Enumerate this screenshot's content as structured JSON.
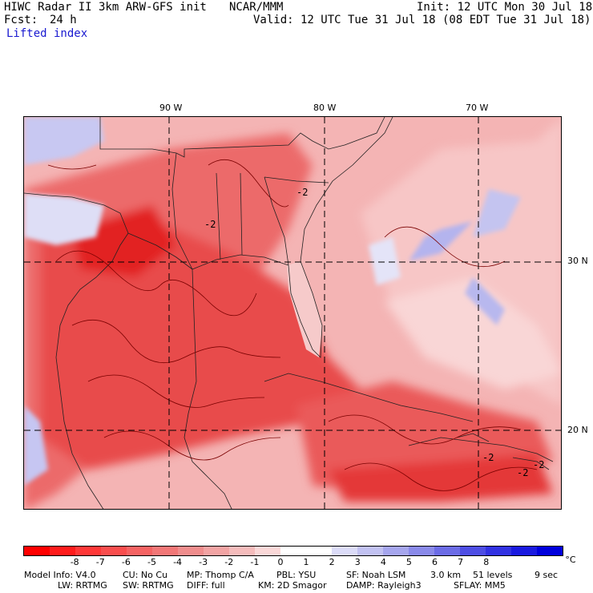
{
  "header": {
    "title_left": "HIWC Radar II 3km ARW-GFS init",
    "org": "NCAR/MMM",
    "init": "Init: 12 UTC Mon 30 Jul 18",
    "fcst_label": "Fcst:",
    "fcst_value": "24 h",
    "valid": "Valid: 12 UTC Tue 31 Jul 18 (08 EDT Tue 31 Jul 18)",
    "field_name": "Lifted index"
  },
  "map": {
    "lon_labels": [
      "90 W",
      "80 W",
      "70 W"
    ],
    "lat_labels": [
      "30 N",
      "20 N"
    ],
    "contour_labels": [
      "-2",
      "-2",
      "-2",
      "-2",
      "-2"
    ],
    "colors": {
      "ocean_light": "#f6c6c6",
      "land_mid": "#ee7474",
      "strong": "#e22020",
      "cool": "#b8b8f0",
      "boundary": "#222222",
      "contour": "#7a0000"
    }
  },
  "colorbar": {
    "ticks": [
      "-8",
      "-7",
      "-6",
      "-5",
      "-4",
      "-3",
      "-2",
      "-1",
      "0",
      "1",
      "2",
      "3",
      "4",
      "5",
      "6",
      "7",
      "8"
    ],
    "unit": "°C",
    "colors": [
      "#ff0000",
      "#ff1c1c",
      "#ff3838",
      "#f94e4e",
      "#f56363",
      "#f27777",
      "#f08d8d",
      "#f2a4a4",
      "#f5bcbc",
      "#fad8d8",
      "#ffffff",
      "#ffffff",
      "#dcdcf8",
      "#c2c2f2",
      "#a6a6ee",
      "#8a8aea",
      "#6c6ce6",
      "#4e4ee4",
      "#3232e2",
      "#1a1ae0",
      "#0000dc"
    ]
  },
  "footer": {
    "model_info": "Model Info: V4.0",
    "cu": "CU: No Cu",
    "mp": "MP: Thomp C/A",
    "pbl": "PBL: YSU",
    "sf": "SF: Noah LSM",
    "res": "3.0 km",
    "levels": "51 levels",
    "dt": "9 sec",
    "lw": "LW: RRTMG",
    "sw": "SW: RRTMG",
    "diff": "DIFF: full",
    "km": "KM: 2D Smagor",
    "damp": "DAMP: Rayleigh3",
    "sflay": "SFLAY: MM5"
  }
}
